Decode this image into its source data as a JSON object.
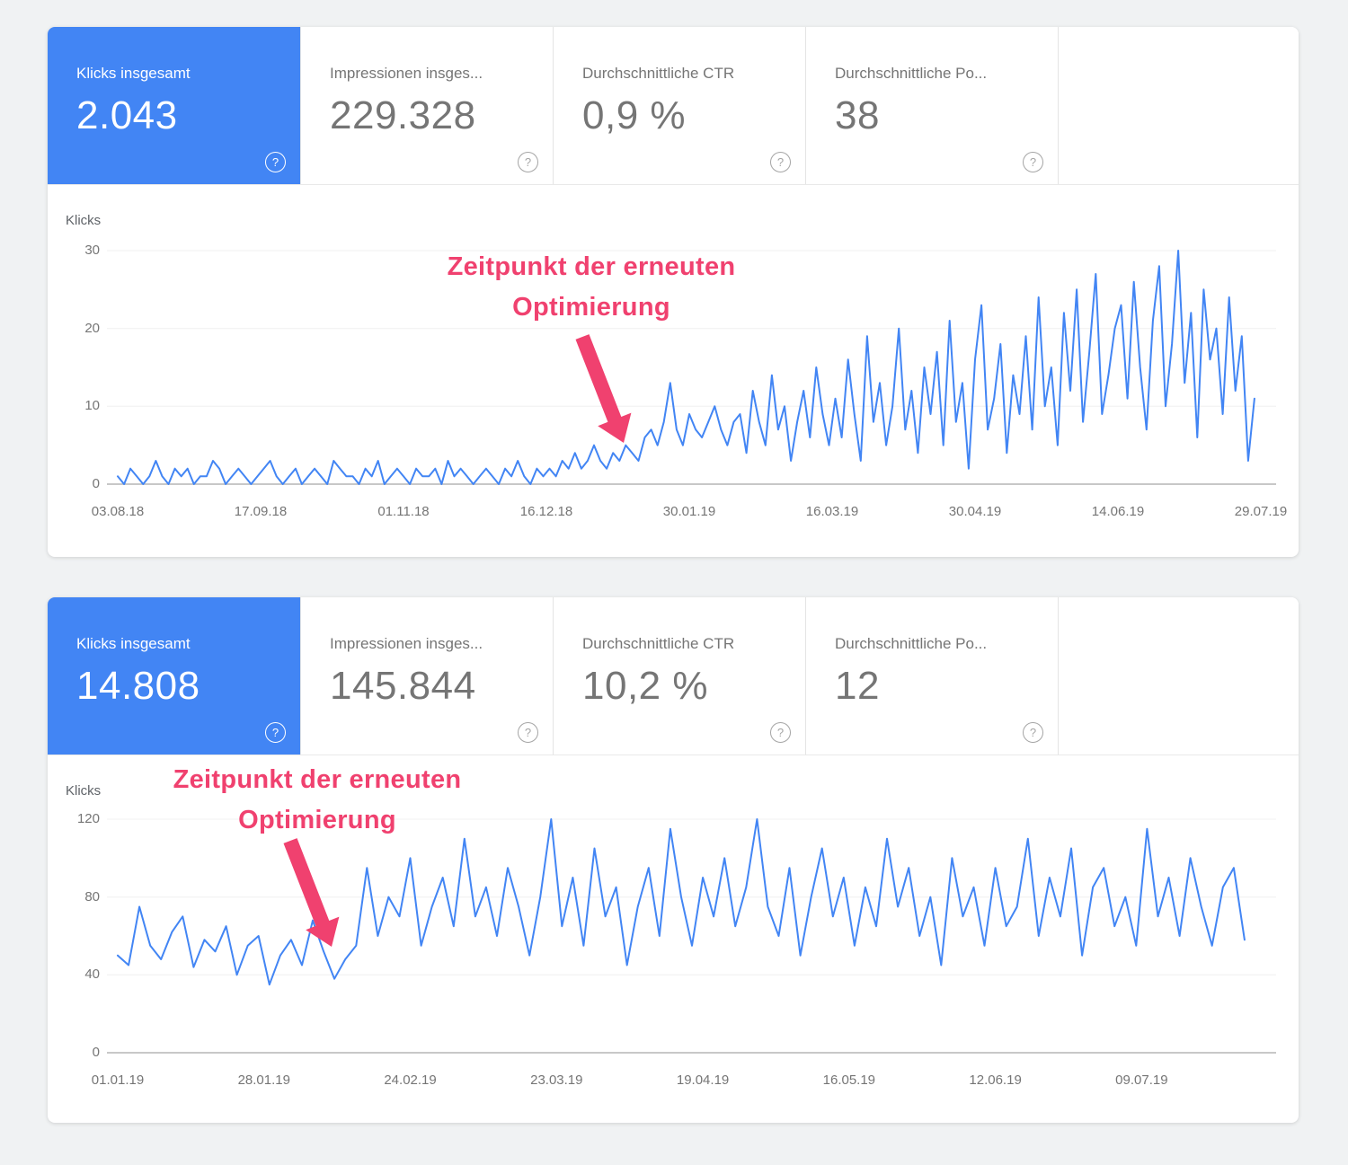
{
  "help_icon": "?",
  "colors": {
    "accent_blue": "#4285f4",
    "line_blue": "#4285f4",
    "annotation_pink": "#f0416f",
    "page_bg": "#f0f2f3"
  },
  "panels": [
    {
      "cards": [
        {
          "title": "Klicks insgesamt",
          "value": "2.043",
          "active": true
        },
        {
          "title": "Impressionen insges...",
          "value": "229.328",
          "active": false
        },
        {
          "title": "Durchschnittliche CTR",
          "value": "0,9 %",
          "active": false
        },
        {
          "title": "Durchschnittliche Po...",
          "value": "38",
          "active": false
        }
      ],
      "annotation": {
        "line1": "Zeitpunkt der erneuten",
        "line2": "Optimierung"
      }
    },
    {
      "cards": [
        {
          "title": "Klicks insgesamt",
          "value": "14.808",
          "active": true
        },
        {
          "title": "Impressionen insges...",
          "value": "145.844",
          "active": false
        },
        {
          "title": "Durchschnittliche CTR",
          "value": "10,2 %",
          "active": false
        },
        {
          "title": "Durchschnittliche Po...",
          "value": "12",
          "active": false
        }
      ],
      "annotation": {
        "line1": "Zeitpunkt der erneuten",
        "line2": "Optimierung"
      }
    }
  ],
  "chart_data": [
    {
      "type": "line",
      "title": "Klicks über Zeit (vor Optimierung niedrig, danach steigend)",
      "ylabel": "Klicks",
      "series_name": "Klicks",
      "legend": false,
      "grid": true,
      "ylim": [
        0,
        30
      ],
      "yticks": [
        0,
        10,
        20,
        30
      ],
      "x_range_days": 360,
      "point_interval_days": 2,
      "xtick_days": [
        0,
        45,
        90,
        135,
        180,
        225,
        270,
        315,
        360
      ],
      "xtick_labels": [
        "03.08.18",
        "17.09.18",
        "01.11.18",
        "16.12.18",
        "30.01.19",
        "16.03.19",
        "30.04.19",
        "14.06.19",
        "29.07.19"
      ],
      "values": [
        1,
        0,
        2,
        1,
        0,
        1,
        3,
        1,
        0,
        2,
        1,
        2,
        0,
        1,
        1,
        3,
        2,
        0,
        1,
        2,
        1,
        0,
        1,
        2,
        3,
        1,
        0,
        1,
        2,
        0,
        1,
        2,
        1,
        0,
        3,
        2,
        1,
        1,
        0,
        2,
        1,
        3,
        0,
        1,
        2,
        1,
        0,
        2,
        1,
        1,
        2,
        0,
        3,
        1,
        2,
        1,
        0,
        1,
        2,
        1,
        0,
        2,
        1,
        3,
        1,
        0,
        2,
        1,
        2,
        1,
        3,
        2,
        4,
        2,
        3,
        5,
        3,
        2,
        4,
        3,
        5,
        4,
        3,
        6,
        7,
        5,
        8,
        13,
        7,
        5,
        9,
        7,
        6,
        8,
        10,
        7,
        5,
        8,
        9,
        4,
        12,
        8,
        5,
        14,
        7,
        10,
        3,
        8,
        12,
        6,
        15,
        9,
        5,
        11,
        6,
        16,
        9,
        3,
        19,
        8,
        13,
        5,
        10,
        20,
        7,
        12,
        4,
        15,
        9,
        17,
        5,
        21,
        8,
        13,
        2,
        16,
        23,
        7,
        11,
        18,
        4,
        14,
        9,
        19,
        7,
        24,
        10,
        15,
        5,
        22,
        12,
        25,
        8,
        17,
        27,
        9,
        14,
        20,
        23,
        11,
        26,
        15,
        7,
        21,
        28,
        10,
        18,
        30,
        13,
        22,
        6,
        25,
        16,
        20,
        9,
        24,
        12,
        19,
        3,
        11
      ]
    },
    {
      "type": "line",
      "title": "Klicks über Zeit (nach Optimierung dauerhaft hoch)",
      "ylabel": "Klicks",
      "series_name": "Klicks",
      "legend": false,
      "grid": true,
      "ylim": [
        0,
        120
      ],
      "yticks": [
        0,
        40,
        80,
        120
      ],
      "x_range_days": 211,
      "point_interval_days": 2,
      "xtick_days": [
        0,
        27,
        54,
        81,
        108,
        135,
        162,
        189
      ],
      "xtick_labels": [
        "01.01.19",
        "28.01.19",
        "24.02.19",
        "23.03.19",
        "19.04.19",
        "16.05.19",
        "12.06.19",
        "09.07.19"
      ],
      "values": [
        50,
        45,
        75,
        55,
        48,
        62,
        70,
        44,
        58,
        52,
        65,
        40,
        55,
        60,
        35,
        50,
        58,
        45,
        68,
        52,
        38,
        48,
        55,
        95,
        60,
        80,
        70,
        100,
        55,
        75,
        90,
        65,
        110,
        70,
        85,
        60,
        95,
        75,
        50,
        80,
        120,
        65,
        90,
        55,
        105,
        70,
        85,
        45,
        75,
        95,
        60,
        115,
        80,
        55,
        90,
        70,
        100,
        65,
        85,
        120,
        75,
        60,
        95,
        50,
        80,
        105,
        70,
        90,
        55,
        85,
        65,
        110,
        75,
        95,
        60,
        80,
        45,
        100,
        70,
        85,
        55,
        95,
        65,
        75,
        110,
        60,
        90,
        70,
        105,
        50,
        85,
        95,
        65,
        80,
        55,
        115,
        70,
        90,
        60,
        100,
        75,
        55,
        85,
        95,
        58
      ]
    }
  ]
}
